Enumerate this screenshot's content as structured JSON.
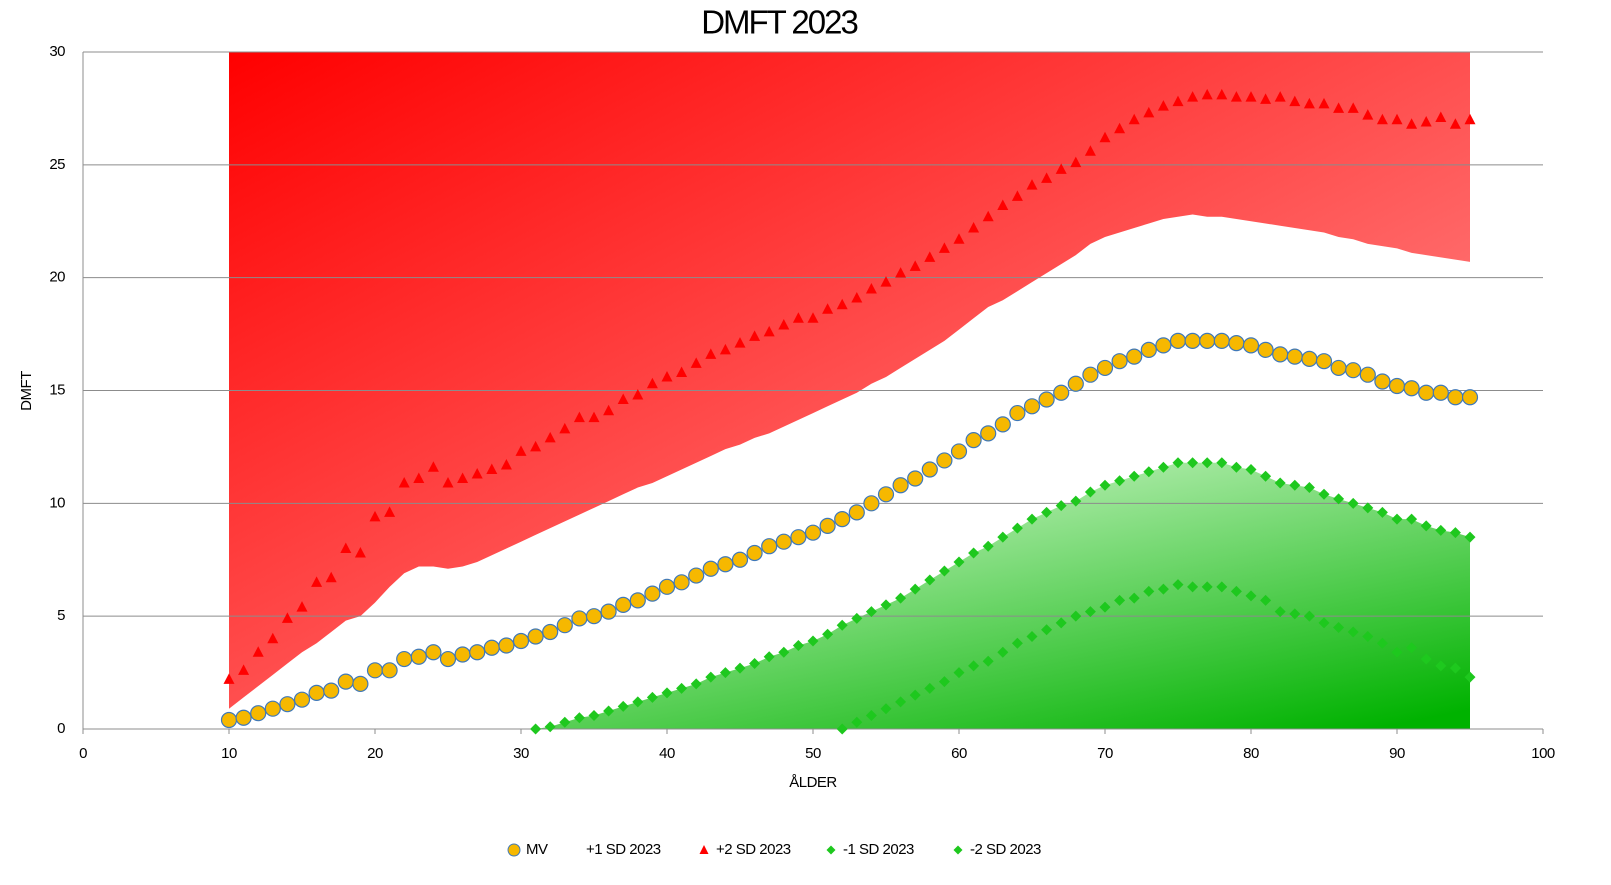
{
  "chart_data": {
    "type": "scatter",
    "title": "DMFT 2023",
    "x_label": "ÅLDER",
    "y_label": "DMFT",
    "xlim": [
      0,
      100
    ],
    "xticks": [
      0,
      10,
      20,
      30,
      40,
      50,
      60,
      70,
      80,
      90,
      100
    ],
    "ylim": [
      0,
      30
    ],
    "yticks": [
      0,
      5,
      10,
      15,
      20,
      25,
      30
    ],
    "grid": true,
    "legend": "bottom",
    "x": [
      10,
      11,
      12,
      13,
      14,
      15,
      16,
      17,
      18,
      19,
      20,
      21,
      22,
      23,
      24,
      25,
      26,
      27,
      28,
      29,
      30,
      31,
      32,
      33,
      34,
      35,
      36,
      37,
      38,
      39,
      40,
      41,
      42,
      43,
      44,
      45,
      46,
      47,
      48,
      49,
      50,
      51,
      52,
      53,
      54,
      55,
      56,
      57,
      58,
      59,
      60,
      61,
      62,
      63,
      64,
      65,
      66,
      67,
      68,
      69,
      70,
      71,
      72,
      73,
      74,
      75,
      76,
      77,
      78,
      79,
      80,
      81,
      82,
      83,
      84,
      85,
      86,
      87,
      88,
      89,
      90,
      91,
      92,
      93,
      94,
      95
    ],
    "series": [
      {
        "name": "MV",
        "marker": "circle",
        "color": "#f6b800",
        "values": [
          0.4,
          0.5,
          0.7,
          0.9,
          1.1,
          1.3,
          1.6,
          1.7,
          2.1,
          2.0,
          2.6,
          2.6,
          3.1,
          3.2,
          3.4,
          3.1,
          3.3,
          3.4,
          3.6,
          3.7,
          3.9,
          4.1,
          4.3,
          4.6,
          4.9,
          5.0,
          5.2,
          5.5,
          5.7,
          6.0,
          6.3,
          6.5,
          6.8,
          7.1,
          7.3,
          7.5,
          7.8,
          8.1,
          8.3,
          8.5,
          8.7,
          9.0,
          9.3,
          9.6,
          10.0,
          10.4,
          10.8,
          11.1,
          11.5,
          11.9,
          12.3,
          12.8,
          13.1,
          13.5,
          14.0,
          14.3,
          14.6,
          14.9,
          15.3,
          15.7,
          16.0,
          16.3,
          16.5,
          16.8,
          17.0,
          17.2,
          17.2,
          17.2,
          17.2,
          17.1,
          17.0,
          16.8,
          16.6,
          16.5,
          16.4,
          16.3,
          16.0,
          15.9,
          15.7,
          15.4,
          15.2,
          15.1,
          14.9,
          14.9,
          14.7,
          14.7
        ]
      },
      {
        "name": "+1 SD 2023",
        "marker": "area",
        "color": "#ff0000",
        "values": [
          0.9,
          1.4,
          1.9,
          2.4,
          2.9,
          3.4,
          3.8,
          4.3,
          4.8,
          5.0,
          5.6,
          6.3,
          6.9,
          7.2,
          7.2,
          7.1,
          7.2,
          7.4,
          7.7,
          8.0,
          8.3,
          8.6,
          8.9,
          9.2,
          9.5,
          9.8,
          10.1,
          10.4,
          10.7,
          10.9,
          11.2,
          11.5,
          11.8,
          12.1,
          12.4,
          12.6,
          12.9,
          13.1,
          13.4,
          13.7,
          14.0,
          14.3,
          14.6,
          14.9,
          15.3,
          15.6,
          16.0,
          16.4,
          16.8,
          17.2,
          17.7,
          18.2,
          18.7,
          19.0,
          19.4,
          19.8,
          20.2,
          20.6,
          21.0,
          21.5,
          21.8,
          22.0,
          22.2,
          22.4,
          22.6,
          22.7,
          22.8,
          22.7,
          22.7,
          22.6,
          22.5,
          22.4,
          22.3,
          22.2,
          22.1,
          22.0,
          21.8,
          21.7,
          21.5,
          21.4,
          21.3,
          21.1,
          21.0,
          20.9,
          20.8,
          20.7
        ]
      },
      {
        "name": "+2 SD 2023",
        "marker": "triangle",
        "color": "#ff0000",
        "values": [
          2.2,
          2.6,
          3.4,
          4.0,
          4.9,
          5.4,
          6.5,
          6.7,
          8.0,
          7.8,
          9.4,
          9.6,
          10.9,
          11.1,
          11.6,
          10.9,
          11.1,
          11.3,
          11.5,
          11.7,
          12.3,
          12.5,
          12.9,
          13.3,
          13.8,
          13.8,
          14.1,
          14.6,
          14.8,
          15.3,
          15.6,
          15.8,
          16.2,
          16.6,
          16.8,
          17.1,
          17.4,
          17.6,
          17.9,
          18.2,
          18.2,
          18.6,
          18.8,
          19.1,
          19.5,
          19.8,
          20.2,
          20.5,
          20.9,
          21.3,
          21.7,
          22.2,
          22.7,
          23.2,
          23.6,
          24.1,
          24.4,
          24.8,
          25.1,
          25.6,
          26.2,
          26.6,
          27.0,
          27.3,
          27.6,
          27.8,
          28.0,
          28.1,
          28.1,
          28.0,
          28.0,
          27.9,
          28.0,
          27.8,
          27.7,
          27.7,
          27.5,
          27.5,
          27.2,
          27.0,
          27.0,
          26.8,
          26.9,
          27.1,
          26.8,
          27.0
        ]
      },
      {
        "name": "-1 SD 2023",
        "marker": "diamond",
        "color": "#1ec81e",
        "values": [
          null,
          null,
          null,
          null,
          null,
          null,
          null,
          null,
          null,
          null,
          null,
          null,
          null,
          null,
          null,
          null,
          null,
          null,
          null,
          null,
          null,
          0.0,
          0.1,
          0.3,
          0.5,
          0.6,
          0.8,
          1.0,
          1.2,
          1.4,
          1.6,
          1.8,
          2.0,
          2.3,
          2.5,
          2.7,
          2.9,
          3.2,
          3.4,
          3.7,
          3.9,
          4.2,
          4.6,
          4.9,
          5.2,
          5.5,
          5.8,
          6.2,
          6.6,
          7.0,
          7.4,
          7.8,
          8.1,
          8.5,
          8.9,
          9.3,
          9.6,
          9.9,
          10.1,
          10.5,
          10.8,
          11.0,
          11.2,
          11.4,
          11.6,
          11.8,
          11.8,
          11.8,
          11.8,
          11.6,
          11.5,
          11.2,
          10.9,
          10.8,
          10.7,
          10.4,
          10.2,
          10.0,
          9.8,
          9.6,
          9.3,
          9.3,
          9.0,
          8.8,
          8.7,
          8.5
        ]
      },
      {
        "name": "-2 SD 2023",
        "marker": "diamond",
        "color": "#1ec81e",
        "values": [
          null,
          null,
          null,
          null,
          null,
          null,
          null,
          null,
          null,
          null,
          null,
          null,
          null,
          null,
          null,
          null,
          null,
          null,
          null,
          null,
          null,
          null,
          null,
          null,
          null,
          null,
          null,
          null,
          null,
          null,
          null,
          null,
          null,
          null,
          null,
          null,
          null,
          null,
          null,
          null,
          null,
          null,
          0.0,
          0.3,
          0.6,
          0.9,
          1.2,
          1.5,
          1.8,
          2.1,
          2.5,
          2.8,
          3.0,
          3.4,
          3.8,
          4.1,
          4.4,
          4.7,
          5.0,
          5.2,
          5.4,
          5.7,
          5.8,
          6.1,
          6.2,
          6.4,
          6.3,
          6.3,
          6.3,
          6.1,
          5.9,
          5.7,
          5.2,
          5.1,
          5.0,
          4.7,
          4.5,
          4.3,
          4.1,
          3.8,
          3.4,
          3.6,
          3.1,
          2.8,
          2.7,
          2.3
        ]
      }
    ]
  }
}
